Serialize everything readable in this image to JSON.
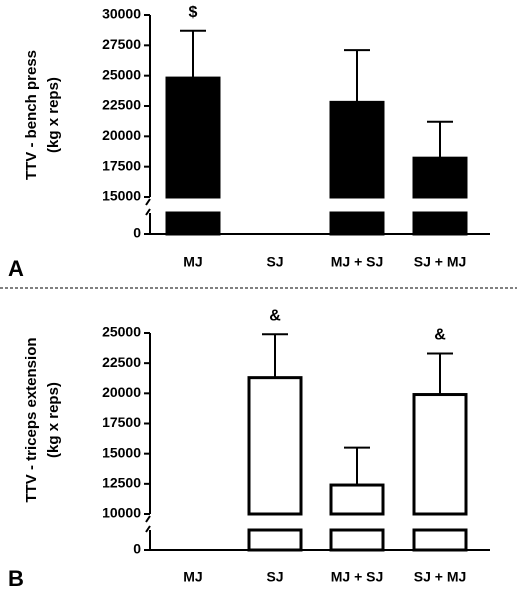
{
  "chart_data": [
    {
      "type": "bar",
      "panel_label": "A",
      "ylabel": [
        "TTV - bench press",
        "(kg x reps)"
      ],
      "categories": [
        "MJ",
        "SJ",
        "MJ + SJ",
        "SJ + MJ"
      ],
      "values": [
        24800,
        null,
        22800,
        18200
      ],
      "errors": [
        3900,
        null,
        4300,
        3000
      ],
      "color": "#000000",
      "edge_color": "#000000",
      "ylim": [
        0,
        30000
      ],
      "y_break": [
        0,
        15000
      ],
      "yticks": [
        0,
        15000,
        17500,
        20000,
        22500,
        25000,
        27500,
        30000
      ],
      "annotations": [
        {
          "text": "$",
          "category": "MJ"
        }
      ]
    },
    {
      "type": "bar",
      "panel_label": "B",
      "ylabel": [
        "TTV - triceps extension",
        "(kg x reps)"
      ],
      "categories": [
        "MJ",
        "SJ",
        "MJ + SJ",
        "SJ + MJ"
      ],
      "values": [
        null,
        21300,
        12400,
        19900
      ],
      "errors": [
        null,
        3600,
        3100,
        3400
      ],
      "color": "#ffffff",
      "edge_color": "#000000",
      "ylim": [
        0,
        25000
      ],
      "y_break": [
        0,
        10000
      ],
      "yticks": [
        0,
        10000,
        12500,
        15000,
        17500,
        20000,
        22500,
        25000
      ],
      "annotations": [
        {
          "text": "&",
          "category": "SJ"
        },
        {
          "text": "&",
          "category": "SJ + MJ"
        }
      ]
    }
  ]
}
